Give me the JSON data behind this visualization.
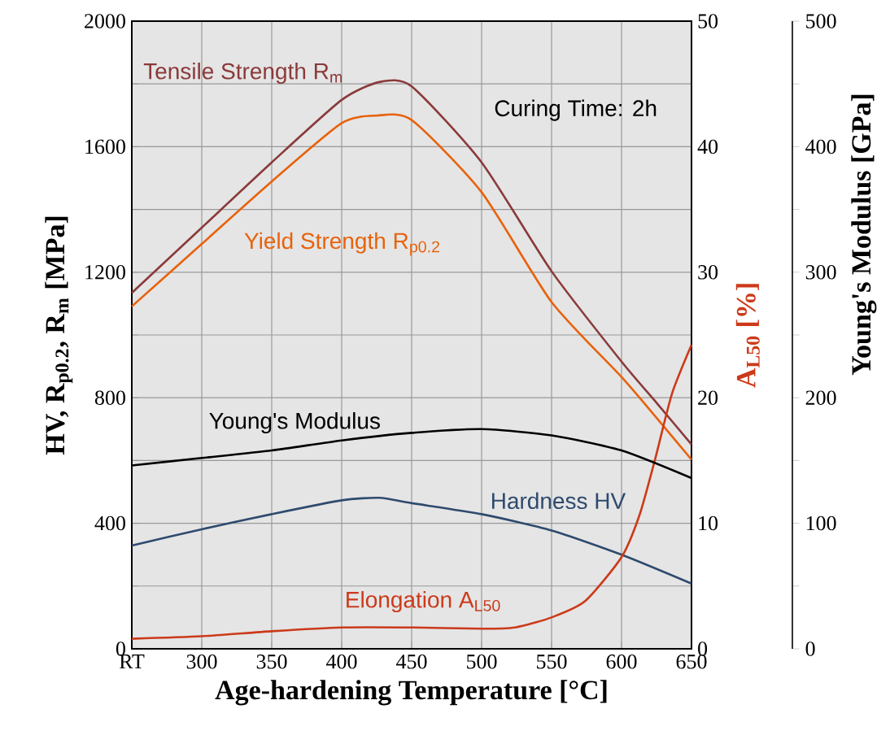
{
  "chart_data": {
    "type": "line",
    "xlabel": "Age-hardening Temperature [°C]",
    "ylabel": "HV, R$_{p0.2}$, R$_{m}$ [MPa]",
    "y2label": "A$_{L50}$ [%]",
    "y3label": "Young's Modulus [GPa]",
    "annotations": [
      "Curing Time: 2h"
    ],
    "xlim": [
      250,
      650
    ],
    "xticks": [
      {
        "value": 250,
        "label": "RT"
      },
      300,
      350,
      400,
      450,
      500,
      550,
      600,
      650
    ],
    "ylim": [
      0,
      2000
    ],
    "yticks": [
      0,
      {
        "value": 200,
        "label": null
      },
      400,
      {
        "value": 600,
        "label": null
      },
      800,
      {
        "value": 1000,
        "label": null
      },
      1200,
      {
        "value": 1400,
        "label": null
      },
      1600,
      {
        "value": 1800,
        "label": null
      },
      2000
    ],
    "y2lim": [
      0,
      50
    ],
    "y2ticks": [
      0,
      10,
      20,
      30,
      40,
      50
    ],
    "y3lim": [
      0,
      500
    ],
    "y3ticks": [
      0,
      {
        "value": 50,
        "label": null
      },
      100,
      {
        "value": 150,
        "label": null
      },
      200,
      {
        "value": 250,
        "label": null
      },
      300,
      {
        "value": 350,
        "label": null
      },
      400,
      {
        "value": 450,
        "label": null
      },
      500
    ],
    "grid": true,
    "series": [
      {
        "name": "Tensile Strength R$_{m}$",
        "color": "#8b3a3a",
        "x": [
          250,
          300,
          350,
          400,
          427,
          450,
          500,
          550,
          600,
          625,
          650
        ],
        "values": [
          1134,
          1342,
          1550,
          1749,
          1806,
          1792,
          1550,
          1203,
          915,
          784,
          651
        ]
      },
      {
        "name": "Yield Strength R$_{p0.2}$",
        "color": "#e8620c",
        "x": [
          250,
          300,
          350,
          400,
          425,
          450,
          500,
          550,
          600,
          625,
          650
        ],
        "values": [
          1091,
          1290,
          1489,
          1675,
          1699,
          1685,
          1455,
          1105,
          866,
          736,
          603
        ]
      },
      {
        "name": "Young's Modulus",
        "color": "#000000",
        "axis": "y3",
        "x": [
          250,
          300,
          350,
          400,
          450,
          500,
          550,
          600,
          650
        ],
        "values": [
          146,
          152,
          158,
          166,
          172,
          175,
          170,
          158,
          136
        ]
      },
      {
        "name": "Hardness HV",
        "color": "#2e4a6e",
        "x": [
          250,
          300,
          350,
          400,
          427,
          450,
          500,
          550,
          600,
          650
        ],
        "values": [
          329,
          381,
          429,
          473,
          481,
          464,
          429,
          377,
          300,
          208
        ]
      },
      {
        "name": "Elongation A$_{L50}$",
        "color": "#cc3a1a",
        "axis": "y2",
        "x": [
          250,
          300,
          350,
          400,
          450,
          500,
          524,
          550,
          574,
          600,
          613,
          624,
          636,
          650
        ],
        "values": [
          0.8,
          1.0,
          1.4,
          1.7,
          1.7,
          1.6,
          1.7,
          2.5,
          3.8,
          7.3,
          10.7,
          15.1,
          20.3,
          24.2
        ]
      }
    ]
  }
}
